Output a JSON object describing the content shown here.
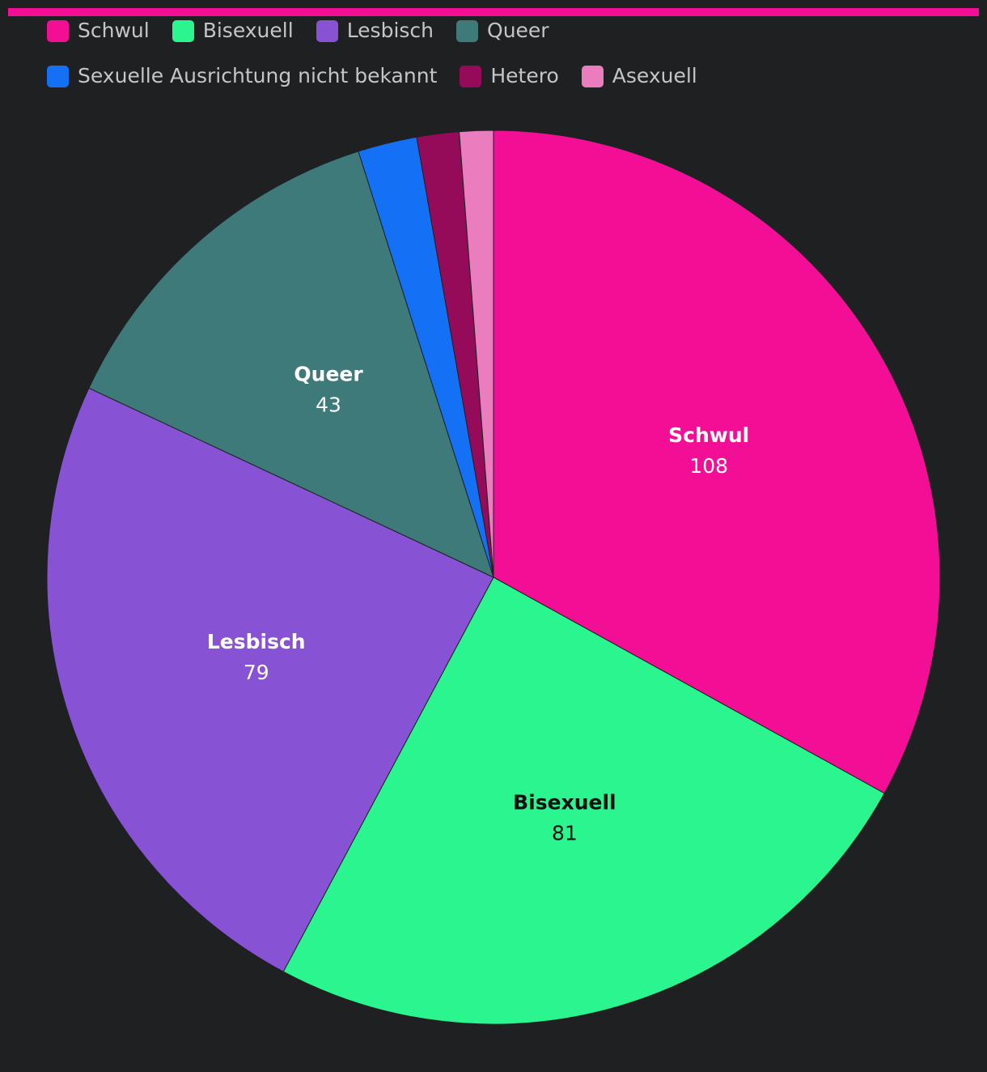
{
  "accent_color": "#f20f96",
  "chart_data": {
    "type": "pie",
    "title": "",
    "legend": "top",
    "categories": [
      "Schwul",
      "Bisexuell",
      "Lesbisch",
      "Queer",
      "Sexuelle Ausrichtung nicht bekannt",
      "Hetero",
      "Asexuell"
    ],
    "values": [
      108,
      81,
      79,
      43,
      7,
      5,
      4
    ],
    "colors": [
      "#f20f96",
      "#2af58f",
      "#8752d4",
      "#3d7a79",
      "#1471f5",
      "#950b5a",
      "#e97dbe"
    ],
    "data_label_colors": [
      "#ffffff",
      "#111111",
      "#ffffff",
      "#ffffff",
      "#ffffff",
      "#ffffff",
      "#ffffff"
    ],
    "show_data_labels": [
      true,
      true,
      true,
      true,
      false,
      false,
      false
    ]
  }
}
